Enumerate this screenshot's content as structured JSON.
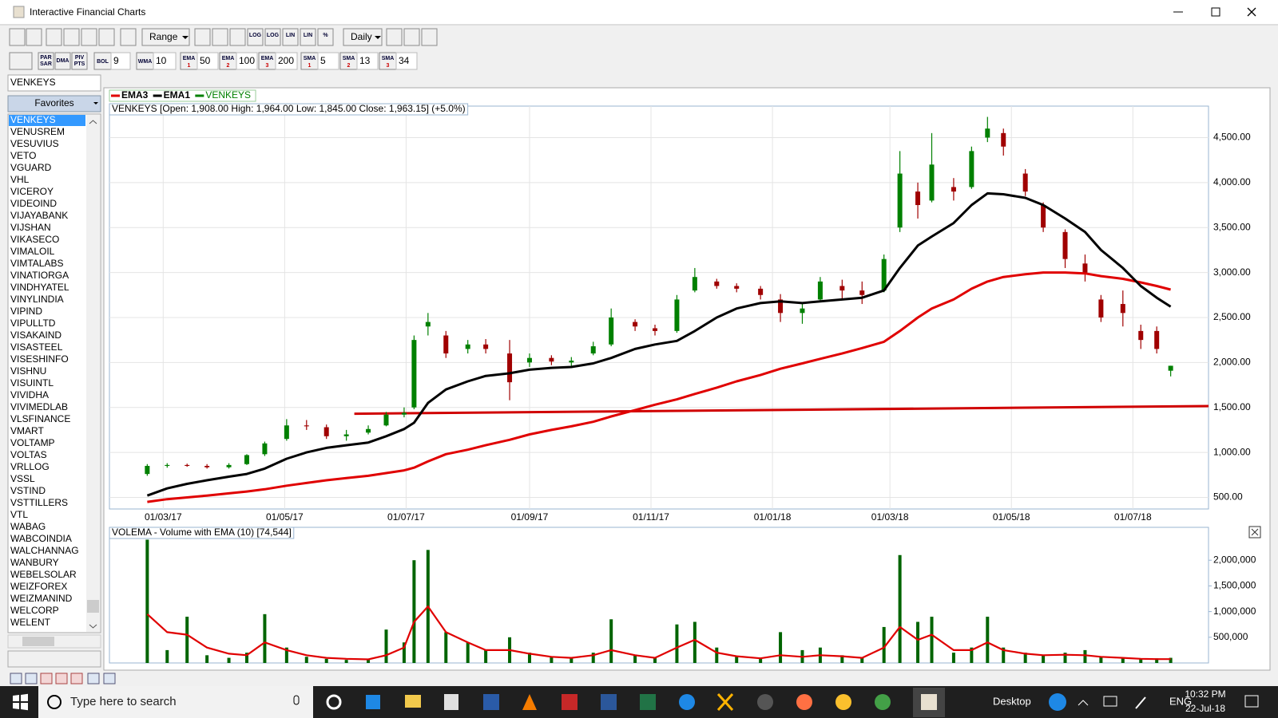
{
  "window": {
    "title": "Interactive Financial Charts"
  },
  "toolbar": {
    "range": "Range",
    "interval": "Daily",
    "scale_buttons": [
      "LOG",
      "LOG",
      "LIN",
      "LIN",
      "%"
    ],
    "indicator_buttons": [
      [
        "PAR",
        "SAR"
      ],
      [
        "DMA"
      ],
      [
        "PIV",
        "PTS"
      ]
    ],
    "indicators": [
      {
        "label": "BOL",
        "value": 9
      },
      {
        "label": "WMA",
        "value": 10
      },
      {
        "label": "EMA",
        "sub": 1,
        "value": 50
      },
      {
        "label": "EMA",
        "sub": 2,
        "value": 100
      },
      {
        "label": "EMA",
        "sub": 3,
        "value": 200
      },
      {
        "label": "SMA",
        "sub": 1,
        "value": 5
      },
      {
        "label": "SMA",
        "sub": 2,
        "value": 13
      },
      {
        "label": "SMA",
        "sub": 3,
        "value": 34
      }
    ]
  },
  "sidebar": {
    "search": "VENKEYS",
    "favorites": "Favorites",
    "symbols": [
      "VENKEYS",
      "VENUSREM",
      "VESUVIUS",
      "VETO",
      "VGUARD",
      "VHL",
      "VICEROY",
      "VIDEOIND",
      "VIJAYABANK",
      "VIJSHAN",
      "VIKASECO",
      "VIMALOIL",
      "VIMTALABS",
      "VINATIORGA",
      "VINDHYATEL",
      "VINYLINDIA",
      "VIPIND",
      "VIPULLTD",
      "VISAKAIND",
      "VISASTEEL",
      "VISESHINFO",
      "VISHNU",
      "VISUINTL",
      "VIVIDHA",
      "VIVIMEDLAB",
      "VLSFINANCE",
      "VMART",
      "VOLTAMP",
      "VOLTAS",
      "VRLLOG",
      "VSSL",
      "VSTIND",
      "VSTTILLERS",
      "VTL",
      "WABAG",
      "WABCOINDIA",
      "WALCHANNAG",
      "WANBURY",
      "WEBELSOLAR",
      "WEIZFOREX",
      "WEIZMANIND",
      "WELCORP",
      "WELENT"
    ]
  },
  "chart_data": [
    {
      "type": "candlestick",
      "title": "VENKEYS [Open: 1,908.00  High: 1,964.00  Low: 1,845.00  Close: 1,963.15] (+5.0%)",
      "x": [
        "2017-02-21",
        "2017-03-03",
        "2017-03-13",
        "2017-03-23",
        "2017-04-03",
        "2017-04-12",
        "2017-04-21",
        "2017-05-02",
        "2017-05-12",
        "2017-05-22",
        "2017-06-01",
        "2017-06-12",
        "2017-06-21",
        "2017-06-30",
        "2017-07-05",
        "2017-07-12",
        "2017-07-21",
        "2017-08-01",
        "2017-08-10",
        "2017-08-22",
        "2017-09-01",
        "2017-09-12",
        "2017-09-22",
        "2017-10-03",
        "2017-10-12",
        "2017-10-24",
        "2017-11-03",
        "2017-11-14",
        "2017-11-23",
        "2017-12-04",
        "2017-12-14",
        "2017-12-26",
        "2018-01-05",
        "2018-01-16",
        "2018-01-25",
        "2018-02-05",
        "2018-02-15",
        "2018-02-26",
        "2018-03-06",
        "2018-03-15",
        "2018-03-22",
        "2018-04-02",
        "2018-04-11",
        "2018-04-19",
        "2018-04-27",
        "2018-05-08",
        "2018-05-17",
        "2018-05-28",
        "2018-06-07",
        "2018-06-15",
        "2018-06-26",
        "2018-07-05",
        "2018-07-13",
        "2018-07-20"
      ],
      "series": [
        {
          "name": "EMA3",
          "color": "#e00000",
          "values": [
            450,
            480,
            500,
            520,
            545,
            565,
            590,
            630,
            660,
            690,
            715,
            740,
            770,
            800,
            830,
            900,
            980,
            1030,
            1080,
            1140,
            1200,
            1250,
            1290,
            1340,
            1400,
            1470,
            1530,
            1590,
            1650,
            1720,
            1790,
            1860,
            1930,
            1990,
            2040,
            2100,
            2160,
            2230,
            2350,
            2500,
            2600,
            2700,
            2820,
            2900,
            2950,
            2980,
            3000,
            3000,
            2990,
            2960,
            2930,
            2890,
            2850,
            2810
          ]
        },
        {
          "name": "EMA1",
          "color": "#000000",
          "values": [
            520,
            600,
            650,
            690,
            730,
            760,
            820,
            930,
            1000,
            1050,
            1080,
            1110,
            1180,
            1260,
            1330,
            1550,
            1700,
            1790,
            1850,
            1880,
            1920,
            1940,
            1950,
            1990,
            2050,
            2150,
            2200,
            2240,
            2350,
            2500,
            2600,
            2660,
            2680,
            2660,
            2680,
            2700,
            2720,
            2800,
            3050,
            3300,
            3400,
            3550,
            3750,
            3880,
            3870,
            3830,
            3750,
            3600,
            3450,
            3250,
            3050,
            2850,
            2720,
            2620
          ]
        },
        {
          "name": "VENKEYS",
          "color": "#008000",
          "down_color": "#a00000",
          "open": [
            760,
            850,
            860,
            850,
            835,
            870,
            980,
            1150,
            1300,
            1280,
            1180,
            1220,
            1300,
            1420,
            1500,
            2400,
            2300,
            2150,
            2200,
            2100,
            2000,
            2050,
            2000,
            2100,
            2200,
            2450,
            2380,
            2350,
            2800,
            2900,
            2850,
            2820,
            2700,
            2550,
            2700,
            2850,
            2800,
            2800,
            3500,
            3900,
            3800,
            3950,
            3950,
            4500,
            4550,
            4100,
            3750,
            3450,
            3100,
            2700,
            2650,
            2350,
            2350,
            1908
          ],
          "high": [
            870,
            880,
            875,
            870,
            880,
            980,
            1120,
            1370,
            1360,
            1310,
            1250,
            1300,
            1450,
            1500,
            2300,
            2550,
            2350,
            2250,
            2260,
            2250,
            2100,
            2080,
            2060,
            2230,
            2600,
            2480,
            2420,
            2750,
            3050,
            2930,
            2880,
            2850,
            2760,
            2650,
            2950,
            2920,
            2900,
            3200,
            4350,
            4000,
            4550,
            4050,
            4400,
            4730,
            4600,
            4150,
            3780,
            3480,
            3200,
            2750,
            2800,
            2420,
            2400,
            1964
          ],
          "low": [
            740,
            830,
            840,
            820,
            820,
            860,
            960,
            1130,
            1250,
            1150,
            1130,
            1200,
            1290,
            1390,
            1480,
            2300,
            2050,
            2100,
            2100,
            1580,
            1950,
            1970,
            1950,
            2080,
            2180,
            2350,
            2300,
            2330,
            2780,
            2820,
            2780,
            2700,
            2450,
            2430,
            2680,
            2700,
            2650,
            2780,
            3450,
            3600,
            3780,
            3800,
            3930,
            4450,
            4300,
            3850,
            3450,
            3050,
            2900,
            2450,
            2400,
            2150,
            2100,
            1845
          ],
          "close": [
            850,
            860,
            850,
            835,
            860,
            970,
            1100,
            1300,
            1290,
            1180,
            1200,
            1260,
            1420,
            1440,
            2250,
            2450,
            2100,
            2200,
            2150,
            1780,
            2050,
            2010,
            2020,
            2180,
            2500,
            2400,
            2350,
            2700,
            2950,
            2850,
            2820,
            2750,
            2550,
            2600,
            2900,
            2800,
            2750,
            3150,
            4100,
            3750,
            4200,
            3900,
            4350,
            4600,
            4400,
            3900,
            3500,
            3150,
            3000,
            2500,
            2550,
            2250,
            2150,
            1963.15
          ]
        }
      ],
      "trendline": {
        "color": "#d00000",
        "x": [
          "2017-06-05",
          "2018-08-08"
        ],
        "values": [
          1430,
          1515
        ]
      },
      "xlim": [
        "2017-02-02",
        "2018-08-08"
      ],
      "xticks": [
        {
          "value": "2017-03-01",
          "label": "01/03/17"
        },
        {
          "value": "2017-05-01",
          "label": "01/05/17"
        },
        {
          "value": "2017-07-01",
          "label": "01/07/17"
        },
        {
          "value": "2017-09-01",
          "label": "01/09/17"
        },
        {
          "value": "2017-11-01",
          "label": "01/11/17"
        },
        {
          "value": "2018-01-01",
          "label": "01/01/18"
        },
        {
          "value": "2018-03-01",
          "label": "01/03/18"
        },
        {
          "value": "2018-05-01",
          "label": "01/05/18"
        },
        {
          "value": "2018-07-01",
          "label": "01/07/18"
        }
      ],
      "ylim": [
        371,
        4850
      ],
      "yticks": [
        {
          "value": 500,
          "label": "500.00"
        },
        {
          "value": 1000,
          "label": "1,000.00"
        },
        {
          "value": 1500,
          "label": "1,500.00"
        },
        {
          "value": 2000,
          "label": "2,000.00"
        },
        {
          "value": 2500,
          "label": "2,500.00"
        },
        {
          "value": 3000,
          "label": "3,000.00"
        },
        {
          "value": 3500,
          "label": "3,500.00"
        },
        {
          "value": 4000,
          "label": "4,000.00"
        },
        {
          "value": 4500,
          "label": "4,500.00"
        }
      ],
      "grid": true,
      "legend": "top-left"
    },
    {
      "type": "bar",
      "title": "VOLEMA - Volume with EMA (10) [74,544]",
      "x": [
        "2017-02-21",
        "2017-03-03",
        "2017-03-13",
        "2017-03-23",
        "2017-04-03",
        "2017-04-12",
        "2017-04-21",
        "2017-05-02",
        "2017-05-12",
        "2017-05-22",
        "2017-06-01",
        "2017-06-12",
        "2017-06-21",
        "2017-06-30",
        "2017-07-05",
        "2017-07-12",
        "2017-07-21",
        "2017-08-01",
        "2017-08-10",
        "2017-08-22",
        "2017-09-01",
        "2017-09-12",
        "2017-09-22",
        "2017-10-03",
        "2017-10-12",
        "2017-10-24",
        "2017-11-03",
        "2017-11-14",
        "2017-11-23",
        "2017-12-04",
        "2017-12-14",
        "2017-12-26",
        "2018-01-05",
        "2018-01-16",
        "2018-01-25",
        "2018-02-05",
        "2018-02-15",
        "2018-02-26",
        "2018-03-06",
        "2018-03-15",
        "2018-03-22",
        "2018-04-02",
        "2018-04-11",
        "2018-04-19",
        "2018-04-27",
        "2018-05-08",
        "2018-05-17",
        "2018-05-28",
        "2018-06-07",
        "2018-06-15",
        "2018-06-26",
        "2018-07-05",
        "2018-07-13",
        "2018-07-20"
      ],
      "series": [
        {
          "color": "#006400",
          "values": [
            2400000,
            250000,
            900000,
            150000,
            100000,
            200000,
            950000,
            300000,
            120000,
            80000,
            60000,
            80000,
            650000,
            400000,
            2000000,
            2200000,
            600000,
            400000,
            250000,
            500000,
            200000,
            120000,
            100000,
            200000,
            850000,
            150000,
            100000,
            750000,
            800000,
            300000,
            120000,
            80000,
            600000,
            250000,
            300000,
            150000,
            100000,
            700000,
            2100000,
            800000,
            900000,
            200000,
            300000,
            900000,
            300000,
            200000,
            150000,
            200000,
            250000,
            120000,
            100000,
            80000,
            90000,
            100000
          ]
        },
        {
          "type": "line",
          "color": "#e00000",
          "values": [
            950000,
            600000,
            550000,
            300000,
            180000,
            150000,
            400000,
            250000,
            150000,
            100000,
            80000,
            70000,
            150000,
            300000,
            800000,
            1100000,
            600000,
            400000,
            250000,
            250000,
            180000,
            120000,
            100000,
            150000,
            250000,
            150000,
            100000,
            300000,
            450000,
            200000,
            130000,
            90000,
            150000,
            120000,
            150000,
            130000,
            100000,
            300000,
            700000,
            450000,
            550000,
            250000,
            250000,
            400000,
            250000,
            180000,
            150000,
            160000,
            150000,
            120000,
            100000,
            80000,
            75000,
            74544
          ]
        }
      ],
      "xlim": [
        "2017-02-02",
        "2018-08-08"
      ],
      "ylim": [
        0,
        2640000
      ],
      "yticks": [
        {
          "value": 500000,
          "label": "500,000"
        },
        {
          "value": 1000000,
          "label": "1,000,000"
        },
        {
          "value": 1500000,
          "label": "1,500,000"
        },
        {
          "value": 2000000,
          "label": "2,000,000"
        }
      ],
      "grid": false
    }
  ],
  "taskbar": {
    "search": "Type here to search",
    "desktop": "Desktop",
    "language": "ENG",
    "time": "10:32 PM",
    "date": "22-Jul-18"
  }
}
